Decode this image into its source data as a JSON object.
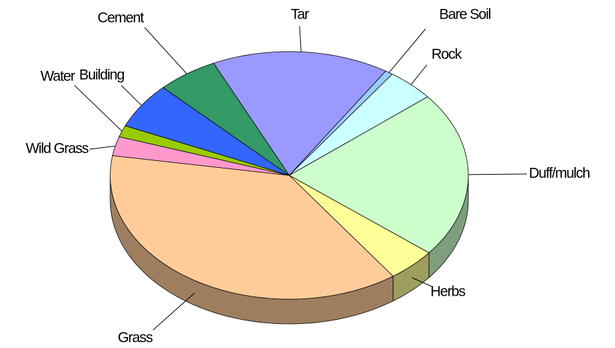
{
  "chart_data": {
    "type": "pie3d",
    "categories": [
      "Tar",
      "Bare Soil",
      "Rock",
      "Duff/mulch",
      "Herbs",
      "Grass",
      "Wild Grass",
      "Water",
      "Building",
      "Cement"
    ],
    "values": [
      16,
      0.7,
      4.3,
      21.7,
      4.4,
      37.4,
      2.5,
      1.5,
      6,
      5.5
    ],
    "colors": [
      "#9999ff",
      "#99ccff",
      "#ccffff",
      "#ccffcc",
      "#ffff99",
      "#ffcc99",
      "#ff99cc",
      "#99cc00",
      "#3366ff",
      "#339966"
    ]
  }
}
